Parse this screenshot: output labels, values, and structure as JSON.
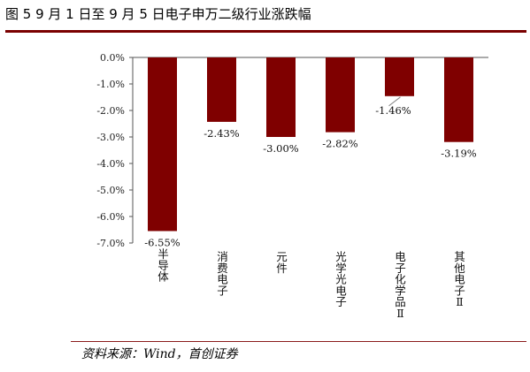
{
  "title": "图 5 9 月 1 日至 9 月 5 日电子申万二级行业涨跌幅",
  "source": "资料来源：Wind，首创证券",
  "colors": {
    "bar": "#7f0000",
    "rule": "#7a0000"
  },
  "chart_data": {
    "type": "bar",
    "categories": [
      "半导体",
      "消费电子",
      "元件",
      "光学光电子",
      "电子化学品Ⅱ",
      "其他电子Ⅱ"
    ],
    "values": [
      -6.55,
      -2.43,
      -3.0,
      -2.82,
      -1.46,
      -3.19
    ],
    "value_labels": [
      "-6.55%",
      "-2.43%",
      "-3.00%",
      "-2.82%",
      "-1.46%",
      "-3.19%"
    ],
    "ylim": [
      -7.0,
      0.0
    ],
    "yticks": [
      0.0,
      -1.0,
      -2.0,
      -3.0,
      -4.0,
      -5.0,
      -6.0,
      -7.0
    ],
    "ytick_labels": [
      "0.0%",
      "-1.0%",
      "-2.0%",
      "-3.0%",
      "-4.0%",
      "-5.0%",
      "-6.0%",
      "-7.0%"
    ],
    "xlabel": "",
    "ylabel": "",
    "grid": false,
    "legend": "none"
  }
}
